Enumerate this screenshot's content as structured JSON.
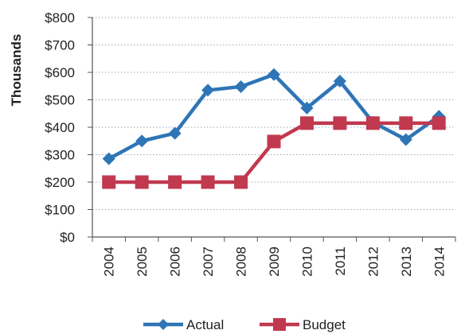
{
  "chart_data": {
    "type": "line",
    "title": "",
    "xlabel": "",
    "ylabel": "Thousands",
    "y_prefix": "$",
    "ylim": [
      0,
      800
    ],
    "y_ticks": [
      0,
      100,
      200,
      300,
      400,
      500,
      600,
      700,
      800
    ],
    "y_tick_labels": [
      "$0",
      "$100",
      "$200",
      "$300",
      "$400",
      "$500",
      "$600",
      "$700",
      "$800"
    ],
    "grid": "horizontal dotted",
    "legend_position": "bottom",
    "categories": [
      "2004",
      "2005",
      "2006",
      "2007",
      "2008",
      "2009",
      "2010",
      "2011",
      "2012",
      "2013",
      "2014"
    ],
    "series": [
      {
        "name": "Actual",
        "color": "#2e75b6",
        "marker": "diamond",
        "values": [
          285,
          350,
          378,
          535,
          548,
          592,
          470,
          568,
          418,
          355,
          440
        ]
      },
      {
        "name": "Budget",
        "color": "#c0394f",
        "marker": "square",
        "values": [
          200,
          200,
          200,
          200,
          200,
          348,
          415,
          415,
          415,
          415,
          415
        ]
      }
    ]
  }
}
